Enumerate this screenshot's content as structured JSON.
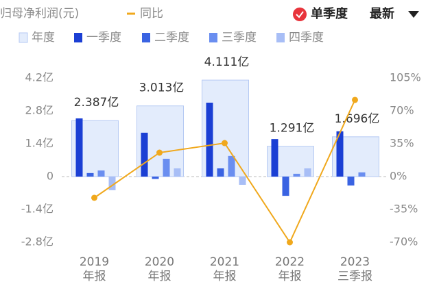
{
  "chart_data": {
    "type": "bar",
    "y_label": "归母净利润(元)",
    "categories": [
      "2019",
      "2020",
      "2021",
      "2022",
      "2023"
    ],
    "category_sublabels": [
      "年报",
      "年报",
      "年报",
      "年报",
      "三季报"
    ],
    "series": [
      {
        "name": "年度",
        "color": "#e3ecfc",
        "kind": "annual",
        "values": [
          2.387,
          3.013,
          4.111,
          1.291,
          1.696
        ],
        "value_labels": [
          "2.387亿",
          "3.013亿",
          "4.111亿",
          "1.291亿",
          "1.696亿"
        ]
      },
      {
        "name": "一季度",
        "color": "#1b3fd4",
        "kind": "quarter",
        "values": [
          2.48,
          1.87,
          3.15,
          1.6,
          1.93
        ]
      },
      {
        "name": "二季度",
        "color": "#3a63e2",
        "kind": "quarter",
        "values": [
          0.15,
          -0.1,
          0.35,
          -0.82,
          -0.38
        ]
      },
      {
        "name": "三季度",
        "color": "#6a8ef0",
        "kind": "quarter",
        "values": [
          0.26,
          0.76,
          0.88,
          0.12,
          0.18
        ]
      },
      {
        "name": "四季度",
        "color": "#a8bef6",
        "kind": "quarter",
        "values": [
          -0.58,
          0.35,
          -0.35,
          0.35,
          null
        ]
      },
      {
        "name": "同比",
        "color": "#f0a81c",
        "kind": "line",
        "axis": "y2",
        "values": [
          -22.6,
          25.5,
          35.7,
          -70,
          81.7
        ]
      }
    ],
    "ylim": [
      -2.8,
      4.2
    ],
    "yticks": [
      {
        "value": -2.8,
        "label": "-2.8亿"
      },
      {
        "value": -1.4,
        "label": "-1.4亿"
      },
      0,
      {
        "value": 1.4,
        "label": "1.4亿"
      },
      {
        "value": 2.8,
        "label": "2.8亿"
      },
      {
        "value": 4.2,
        "label": "4.2亿"
      }
    ],
    "y2lim": [
      -70,
      105
    ],
    "y2ticks": [
      {
        "value": -70,
        "label": "-70%"
      },
      {
        "value": -35,
        "label": "-35%"
      },
      {
        "value": 0,
        "label": "0%"
      },
      {
        "value": 35,
        "label": "35%"
      },
      {
        "value": 70,
        "label": "70%"
      },
      {
        "value": 105,
        "label": "105%"
      }
    ]
  },
  "controls": {
    "mode": "单季度",
    "sort": "最新"
  }
}
